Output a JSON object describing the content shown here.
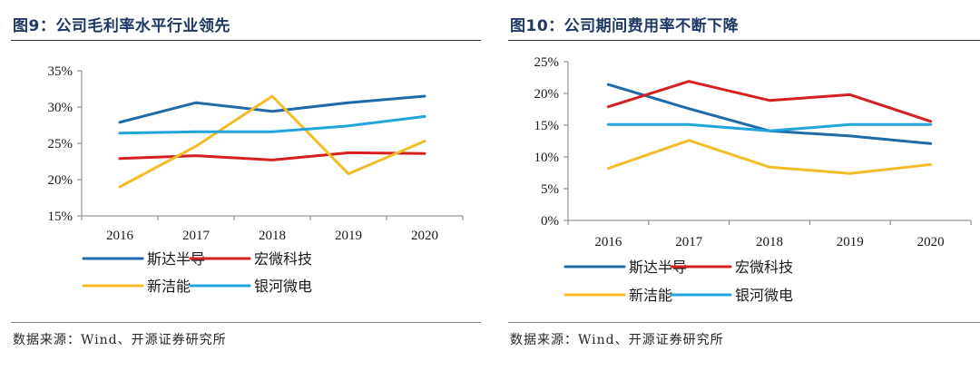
{
  "chart_data": [
    {
      "type": "line",
      "title": "图9：公司毛利率水平行业领先",
      "categories": [
        "2016",
        "2017",
        "2018",
        "2019",
        "2020"
      ],
      "ylim": [
        15,
        35
      ],
      "yticks": [
        15,
        20,
        25,
        30,
        35
      ],
      "yticklabels": [
        "15%",
        "20%",
        "25%",
        "30%",
        "35%"
      ],
      "series": [
        {
          "name": "斯达半导",
          "color": "#1f6aa8",
          "values": [
            27.9,
            30.6,
            29.4,
            30.6,
            31.5
          ]
        },
        {
          "name": "宏微科技",
          "color": "#d62020",
          "values": [
            22.9,
            23.3,
            22.7,
            23.7,
            23.6
          ]
        },
        {
          "name": "新洁能",
          "color": "#f4bd28",
          "values": [
            19.0,
            24.6,
            31.5,
            20.8,
            25.3
          ]
        },
        {
          "name": "银河微电",
          "color": "#21a4dc",
          "values": [
            26.4,
            26.6,
            26.6,
            27.4,
            28.7
          ]
        }
      ],
      "source": "数据来源：Wind、开源证券研究所"
    },
    {
      "type": "line",
      "title": "图10：公司期间费用率不断下降",
      "categories": [
        "2016",
        "2017",
        "2018",
        "2019",
        "2020"
      ],
      "ylim": [
        0,
        25
      ],
      "yticks": [
        0,
        5,
        10,
        15,
        20,
        25
      ],
      "yticklabels": [
        "0%",
        "5%",
        "10%",
        "15%",
        "20%",
        "25%"
      ],
      "series": [
        {
          "name": "斯达半导",
          "color": "#1f6aa8",
          "values": [
            21.4,
            17.6,
            14.1,
            13.3,
            12.1
          ]
        },
        {
          "name": "宏微科技",
          "color": "#d62020",
          "values": [
            17.9,
            21.9,
            18.9,
            19.8,
            15.6
          ]
        },
        {
          "name": "新洁能",
          "color": "#f4bd28",
          "values": [
            8.2,
            12.6,
            8.4,
            7.4,
            8.8
          ]
        },
        {
          "name": "银河微电",
          "color": "#21a4dc",
          "values": [
            15.1,
            15.1,
            14.1,
            15.1,
            15.1
          ]
        }
      ],
      "source": "数据来源：Wind、开源证券研究所"
    }
  ]
}
